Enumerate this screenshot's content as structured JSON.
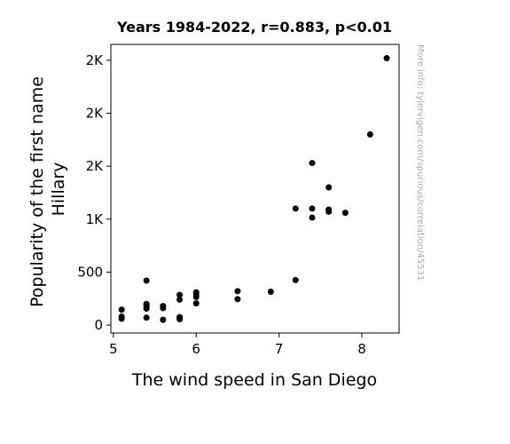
{
  "chart_data": {
    "type": "scatter",
    "title": "Years 1984-2022, r=0.883, p<0.01",
    "xlabel": "The wind speed in San Diego",
    "ylabel_lines": [
      "Popularity of the first name",
      "Hillary"
    ],
    "watermark": "More info: tylervigen.com/spurious/correlation/45531",
    "xlim": [
      4.97,
      8.45
    ],
    "ylim": [
      -75,
      2650
    ],
    "x_ticks": [
      {
        "value": 5,
        "label": "5"
      },
      {
        "value": 6,
        "label": "6"
      },
      {
        "value": 7,
        "label": "7"
      },
      {
        "value": 8,
        "label": "8"
      }
    ],
    "y_ticks": [
      {
        "value": 0,
        "label": "0"
      },
      {
        "value": 500,
        "label": "500"
      },
      {
        "value": 1000,
        "label": "1K"
      },
      {
        "value": 1500,
        "label": "2K"
      },
      {
        "value": 2000,
        "label": "2K"
      },
      {
        "value": 2500,
        "label": "2K"
      }
    ],
    "marker_color": "#000000",
    "points": [
      {
        "x": 5.1,
        "y": 145
      },
      {
        "x": 5.1,
        "y": 80
      },
      {
        "x": 5.1,
        "y": 60
      },
      {
        "x": 5.4,
        "y": 420
      },
      {
        "x": 5.4,
        "y": 200
      },
      {
        "x": 5.4,
        "y": 180
      },
      {
        "x": 5.4,
        "y": 155
      },
      {
        "x": 5.4,
        "y": 70
      },
      {
        "x": 5.6,
        "y": 180
      },
      {
        "x": 5.6,
        "y": 160
      },
      {
        "x": 5.6,
        "y": 50
      },
      {
        "x": 5.8,
        "y": 285
      },
      {
        "x": 5.8,
        "y": 240
      },
      {
        "x": 5.8,
        "y": 75
      },
      {
        "x": 5.8,
        "y": 55
      },
      {
        "x": 6.0,
        "y": 310
      },
      {
        "x": 6.0,
        "y": 290
      },
      {
        "x": 6.0,
        "y": 265
      },
      {
        "x": 6.0,
        "y": 205
      },
      {
        "x": 6.5,
        "y": 320
      },
      {
        "x": 6.5,
        "y": 245
      },
      {
        "x": 6.9,
        "y": 315
      },
      {
        "x": 7.2,
        "y": 1100
      },
      {
        "x": 7.2,
        "y": 425
      },
      {
        "x": 7.4,
        "y": 1530
      },
      {
        "x": 7.4,
        "y": 1100
      },
      {
        "x": 7.4,
        "y": 1015
      },
      {
        "x": 7.6,
        "y": 1300
      },
      {
        "x": 7.6,
        "y": 1090
      },
      {
        "x": 7.6,
        "y": 1070
      },
      {
        "x": 7.8,
        "y": 1060
      },
      {
        "x": 8.1,
        "y": 1800
      },
      {
        "x": 8.3,
        "y": 2520
      }
    ]
  }
}
